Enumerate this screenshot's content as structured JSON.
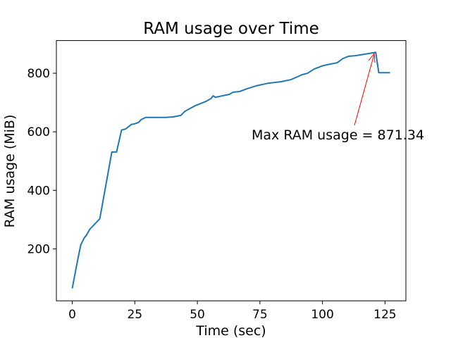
{
  "chart_data": {
    "type": "line",
    "title": "RAM usage over Time",
    "x_label": "Time (sec)",
    "y_label": "RAM usage (MiB)",
    "x": [
      0,
      1.7,
      3.4,
      4.8,
      5.6,
      7,
      11,
      13.5,
      15.8,
      17.7,
      19.7,
      21.4,
      23.6,
      24.8,
      26.5,
      27.6,
      29.3,
      31,
      34.6,
      37.4,
      40.3,
      43.4,
      45,
      46.7,
      49.3,
      53.5,
      55.5,
      56.3,
      57.2,
      60,
      62.8,
      64.2,
      67,
      69.8,
      73.5,
      78.3,
      83.3,
      87.3,
      89.5,
      91.8,
      94,
      96.6,
      100.2,
      103,
      105.9,
      108.1,
      110.4,
      113.2,
      121.3,
      122.5,
      127
    ],
    "series": [
      {
        "color": "#1f77b4",
        "values": [
          65,
          142,
          214,
          238,
          246,
          267,
          303,
          421,
          531,
          531,
          606,
          610,
          625,
          627,
          632,
          642,
          649,
          649,
          649,
          649,
          651,
          656,
          670,
          678,
          690,
          704,
          714,
          723,
          718,
          723,
          728,
          735,
          738,
          747,
          757,
          766,
          771,
          778,
          786,
          795,
          800,
          814,
          826,
          831,
          836,
          850,
          858,
          860,
          871.34,
          802,
          802
        ]
      }
    ],
    "xlim": [
      -6.35,
      133.35
    ],
    "ylim": [
      22.6,
      911.7
    ],
    "xticks": [
      0,
      25,
      50,
      75,
      100,
      125
    ],
    "yticks": [
      200,
      400,
      600,
      800
    ],
    "grid": false,
    "annotation": {
      "text": "Max RAM usage = 871.34",
      "color": "#ff0000"
    }
  }
}
